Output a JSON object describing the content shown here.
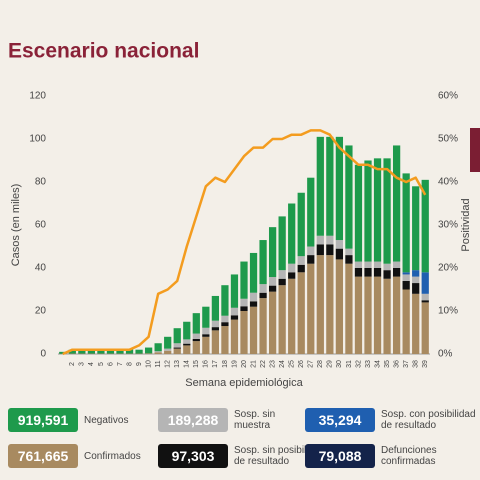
{
  "chart_data": {
    "type": "bar",
    "title": "Escenario nacional",
    "ylabel": "Casos (en miles)",
    "xlabel": "Semana epidemiológica",
    "y2label": "Positividad",
    "categories": [
      null,
      "2",
      "3",
      "4",
      "5",
      "6",
      "7",
      "8",
      "9",
      "10",
      "11",
      "12",
      "13",
      "14",
      "15",
      "16",
      "17",
      "18",
      "19",
      "20",
      "21",
      "22",
      "23",
      "24",
      "25",
      "26",
      "27",
      "28",
      "29",
      "30",
      "31",
      "32",
      "33",
      "34",
      "35",
      "36",
      "37",
      "38",
      "39"
    ],
    "stacked": true,
    "series": [
      {
        "name": "Confirmados",
        "color": "#a88a60",
        "total": {
          "value": 761665,
          "label": "761,665"
        },
        "values": [
          0.1,
          0.2,
          0.2,
          0.2,
          0.2,
          0.2,
          0.2,
          0.2,
          0.2,
          0.3,
          0.8,
          1.5,
          2.5,
          4,
          6,
          8,
          11,
          13,
          16,
          20,
          22,
          26,
          29,
          32,
          35,
          38,
          42,
          46,
          46,
          44,
          42,
          36,
          36,
          36,
          35,
          36,
          30,
          28,
          24
        ]
      },
      {
        "name": "Sosp. sin posibilidad de resultado",
        "color": "#111111",
        "total": {
          "value": 97303,
          "label": "97,303"
        },
        "values": [
          0,
          0,
          0,
          0,
          0,
          0,
          0,
          0,
          0,
          0,
          0,
          0,
          0.5,
          0.8,
          1,
          1.2,
          1.5,
          1.8,
          2,
          2.2,
          2.5,
          2.5,
          2.8,
          3,
          3,
          3.5,
          4,
          5,
          5,
          5,
          4,
          4,
          4,
          4,
          4,
          4,
          4,
          5,
          1
        ]
      },
      {
        "name": "Sosp. sin muestra",
        "color": "#b5b5b5",
        "total": {
          "value": 189288,
          "label": "189,288"
        },
        "values": [
          0,
          0,
          0,
          0,
          0,
          0,
          0,
          0,
          0,
          0,
          0.5,
          1,
          2,
          2,
          2.5,
          3,
          3,
          3,
          3.5,
          3.5,
          4,
          4,
          4,
          4,
          4,
          4,
          4,
          4,
          4,
          4,
          3,
          3,
          3,
          3,
          3,
          3,
          3,
          3,
          3
        ]
      },
      {
        "name": "Sosp. con posibilidad de resultado",
        "color": "#1f5fb0",
        "total": {
          "value": 35294,
          "label": "35,294"
        },
        "values": [
          0,
          0,
          0,
          0,
          0,
          0,
          0,
          0,
          0,
          0,
          0,
          0,
          0,
          0,
          0,
          0,
          0,
          0,
          0,
          0,
          0,
          0,
          0,
          0,
          0,
          0,
          0,
          0,
          0,
          0,
          0,
          0,
          0,
          0,
          0,
          0,
          1,
          3,
          10
        ]
      },
      {
        "name": "Negativos",
        "color": "#1e9a4c",
        "total": {
          "value": 919591,
          "label": "919,591"
        },
        "values": [
          0.9,
          1.8,
          2.3,
          2.3,
          2.3,
          2.3,
          2.3,
          2.3,
          1.8,
          2.7,
          3.7,
          5.5,
          7,
          8.2,
          9.5,
          9.8,
          11.5,
          14.2,
          15.5,
          17.3,
          18.5,
          20.5,
          23.2,
          25,
          28,
          29.5,
          32,
          46,
          46,
          48,
          48,
          45,
          47,
          48,
          49,
          54,
          46,
          39,
          43
        ]
      }
    ],
    "line": {
      "type": "line",
      "axis": "y2",
      "color": "#f39c1f",
      "values": [
        0,
        1,
        1,
        1,
        1,
        1,
        1,
        1,
        2,
        4,
        14,
        15,
        17,
        25,
        32,
        39,
        41,
        40,
        43,
        46,
        48,
        48,
        50,
        50,
        51,
        51,
        52,
        52,
        51,
        48,
        46,
        44,
        44,
        43,
        43,
        41,
        40,
        41,
        37
      ]
    },
    "other_totals": [
      {
        "name": "Defunciones confirmadas",
        "color": "#14234a",
        "total": {
          "value": 79088,
          "label": "79,088"
        }
      }
    ],
    "ylim": [
      0,
      120
    ],
    "yticks": [
      0,
      20,
      40,
      60,
      80,
      100,
      120
    ],
    "y2lim": [
      0,
      60
    ],
    "y2ticks": [
      {
        "value": 0,
        "label": "0%"
      },
      {
        "value": 10,
        "label": "10%"
      },
      {
        "value": 20,
        "label": "20%"
      },
      {
        "value": 30,
        "label": "30%"
      },
      {
        "value": 40,
        "label": "40%"
      },
      {
        "value": 50,
        "label": "50%"
      },
      {
        "value": 60,
        "label": "60%"
      }
    ],
    "grid": false,
    "legend_position": "bottom"
  }
}
